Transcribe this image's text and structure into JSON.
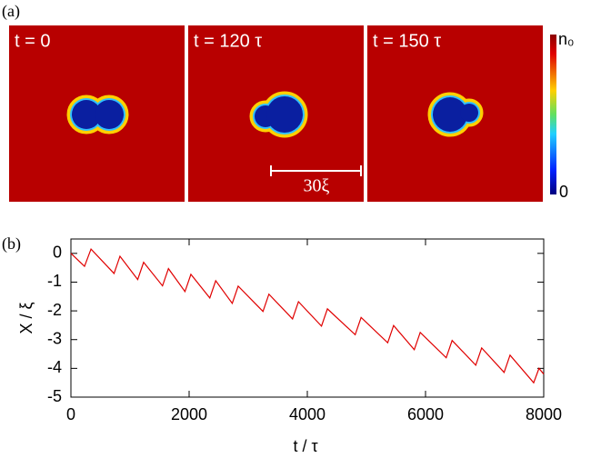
{
  "panel_a": {
    "panel_label": "(a)",
    "frames": [
      "t = 0",
      "t = 120 τ",
      "t = 150 τ"
    ],
    "scale_bar": "30ξ",
    "colorbar_max": "n₀",
    "colorbar_min": "0"
  },
  "panel_b_label": "(b)",
  "chart_data": {
    "type": "line",
    "x_label": "t / τ",
    "y_label": "X / ξ",
    "x": [
      0,
      230,
      340,
      730,
      830,
      1130,
      1230,
      1550,
      1650,
      1930,
      2030,
      2350,
      2450,
      2730,
      2830,
      3250,
      3350,
      3750,
      3850,
      4240,
      4340,
      4810,
      4910,
      5360,
      5460,
      5810,
      5910,
      6350,
      6450,
      6850,
      6950,
      7330,
      7430,
      7830,
      7920,
      8000
    ],
    "values": [
      0,
      -0.45,
      0.15,
      -0.7,
      -0.1,
      -0.91,
      -0.31,
      -1.13,
      -0.53,
      -1.33,
      -0.73,
      -1.55,
      -0.95,
      -1.74,
      -1.14,
      -2.02,
      -1.42,
      -2.28,
      -1.68,
      -2.53,
      -1.93,
      -2.83,
      -2.23,
      -3.11,
      -2.51,
      -3.35,
      -2.75,
      -3.63,
      -3.03,
      -3.89,
      -3.29,
      -4.14,
      -3.54,
      -4.5,
      -4.0,
      -4.2
    ],
    "color": "#e00000",
    "xlim": [
      0,
      8000
    ],
    "ylim": [
      -5,
      0.5
    ],
    "xticks": [
      0,
      2000,
      4000,
      6000,
      8000
    ],
    "yticks": [
      0,
      -1,
      -2,
      -3,
      -4,
      -5
    ]
  }
}
